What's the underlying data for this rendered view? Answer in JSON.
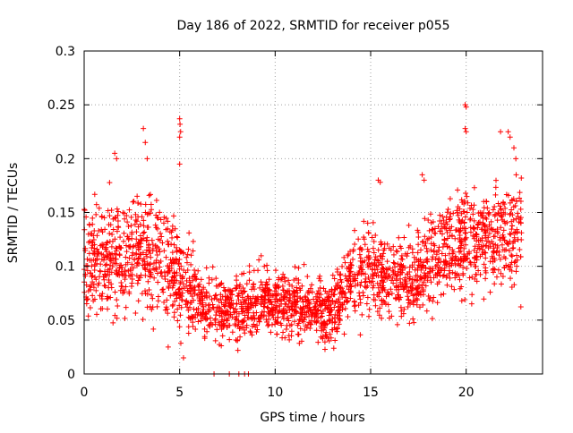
{
  "chart_data": {
    "type": "scatter",
    "title": "Day 186 of 2022, SRMTID for receiver p055",
    "xlabel": "GPS time / hours",
    "ylabel": "SRMTID / TECUs",
    "xlim": [
      0,
      24
    ],
    "ylim": [
      0,
      0.3
    ],
    "grid": true,
    "marker": "+",
    "marker_color": "#ff0000",
    "xticks": [
      {
        "value": 0,
        "label": "0"
      },
      {
        "value": 5,
        "label": "5"
      },
      {
        "value": 10,
        "label": "10"
      },
      {
        "value": 15,
        "label": "15"
      },
      {
        "value": 20,
        "label": "20"
      }
    ],
    "yticks": [
      {
        "value": 0,
        "label": "0"
      },
      {
        "value": 0.05,
        "label": "0.05"
      },
      {
        "value": 0.1,
        "label": "0.1"
      },
      {
        "value": 0.15,
        "label": "0.15"
      },
      {
        "value": 0.2,
        "label": "0.2"
      },
      {
        "value": 0.25,
        "label": "0.25"
      },
      {
        "value": 0.3,
        "label": "0.3"
      }
    ],
    "envelope": {
      "description": "approximate mean SRMTID by hour",
      "x": [
        0,
        1,
        2,
        3,
        4,
        5,
        6,
        7,
        8,
        9,
        10,
        11,
        12,
        13,
        14,
        15,
        16,
        17,
        18,
        19,
        20,
        21,
        22,
        23
      ],
      "mean": [
        0.11,
        0.105,
        0.11,
        0.115,
        0.105,
        0.09,
        0.07,
        0.06,
        0.06,
        0.065,
        0.07,
        0.065,
        0.06,
        0.06,
        0.085,
        0.1,
        0.09,
        0.085,
        0.1,
        0.115,
        0.125,
        0.12,
        0.13,
        0.13
      ],
      "spread": [
        0.035,
        0.035,
        0.035,
        0.035,
        0.035,
        0.035,
        0.025,
        0.022,
        0.022,
        0.022,
        0.022,
        0.022,
        0.02,
        0.022,
        0.03,
        0.03,
        0.025,
        0.025,
        0.03,
        0.035,
        0.035,
        0.035,
        0.035,
        0.035
      ]
    },
    "highlights": [
      {
        "x": 1.6,
        "y": 0.205
      },
      {
        "x": 1.7,
        "y": 0.2
      },
      {
        "x": 3.1,
        "y": 0.228
      },
      {
        "x": 3.2,
        "y": 0.215
      },
      {
        "x": 3.3,
        "y": 0.2
      },
      {
        "x": 5.0,
        "y": 0.237
      },
      {
        "x": 5.02,
        "y": 0.232
      },
      {
        "x": 5.05,
        "y": 0.225
      },
      {
        "x": 5.0,
        "y": 0.22
      },
      {
        "x": 5.0,
        "y": 0.195
      },
      {
        "x": 4.4,
        "y": 0.025
      },
      {
        "x": 5.2,
        "y": 0.015
      },
      {
        "x": 6.8,
        "y": 0.0
      },
      {
        "x": 7.6,
        "y": 0.0
      },
      {
        "x": 8.1,
        "y": 0.0
      },
      {
        "x": 8.4,
        "y": 0.0
      },
      {
        "x": 8.6,
        "y": 0.0
      },
      {
        "x": 15.4,
        "y": 0.18
      },
      {
        "x": 15.5,
        "y": 0.178
      },
      {
        "x": 17.7,
        "y": 0.185
      },
      {
        "x": 17.8,
        "y": 0.18
      },
      {
        "x": 19.95,
        "y": 0.25
      },
      {
        "x": 20.0,
        "y": 0.248
      },
      {
        "x": 19.95,
        "y": 0.228
      },
      {
        "x": 20.0,
        "y": 0.225
      },
      {
        "x": 21.8,
        "y": 0.225
      },
      {
        "x": 22.2,
        "y": 0.225
      },
      {
        "x": 22.3,
        "y": 0.22
      },
      {
        "x": 22.5,
        "y": 0.21
      },
      {
        "x": 22.6,
        "y": 0.2
      }
    ]
  }
}
